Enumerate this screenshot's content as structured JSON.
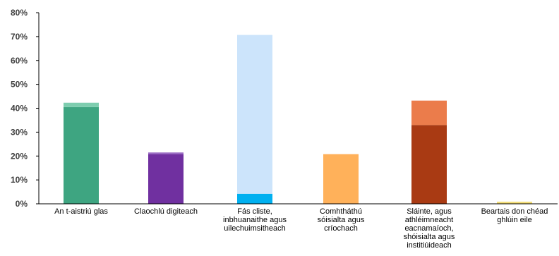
{
  "chart_data": {
    "type": "bar",
    "stacked": true,
    "categories": [
      [
        "An t-aistriú glas"
      ],
      [
        "Claochlú digiteach"
      ],
      [
        "Fás cliste,",
        "inbhuanaithe agus",
        "uilechuimsitheach"
      ],
      [
        "Comhtháthú",
        "sóisialta agus",
        "críochach"
      ],
      [
        "Sláinte, agus",
        "athléimneacht",
        "eacnamaíoch,",
        "shóisialta agus",
        "institiúideach"
      ],
      [
        "Beartais don chéad",
        "ghlúin eile"
      ]
    ],
    "segments": [
      {
        "values": [
          40.5,
          20.8,
          4.2,
          20.8,
          33.0,
          0.0
        ],
        "colors": [
          "#3ea581",
          "#7030a0",
          "#00b0f0",
          "#ffb15a",
          "#a93a13",
          "#f0d25a"
        ]
      },
      {
        "values": [
          1.8,
          0.7,
          66.5,
          0.0,
          10.2,
          0.9
        ],
        "colors": [
          "#7ecdaf",
          "#9b6dc4",
          "#cce4fb",
          "#ffc787",
          "#eb7c4b",
          "#f5df7a"
        ]
      }
    ],
    "yticks": [
      "0%",
      "10%",
      "20%",
      "30%",
      "40%",
      "50%",
      "60%",
      "70%",
      "80%"
    ],
    "ylim": [
      0,
      80
    ],
    "grid": false,
    "legend": "none",
    "xlabel": "",
    "ylabel": ""
  }
}
